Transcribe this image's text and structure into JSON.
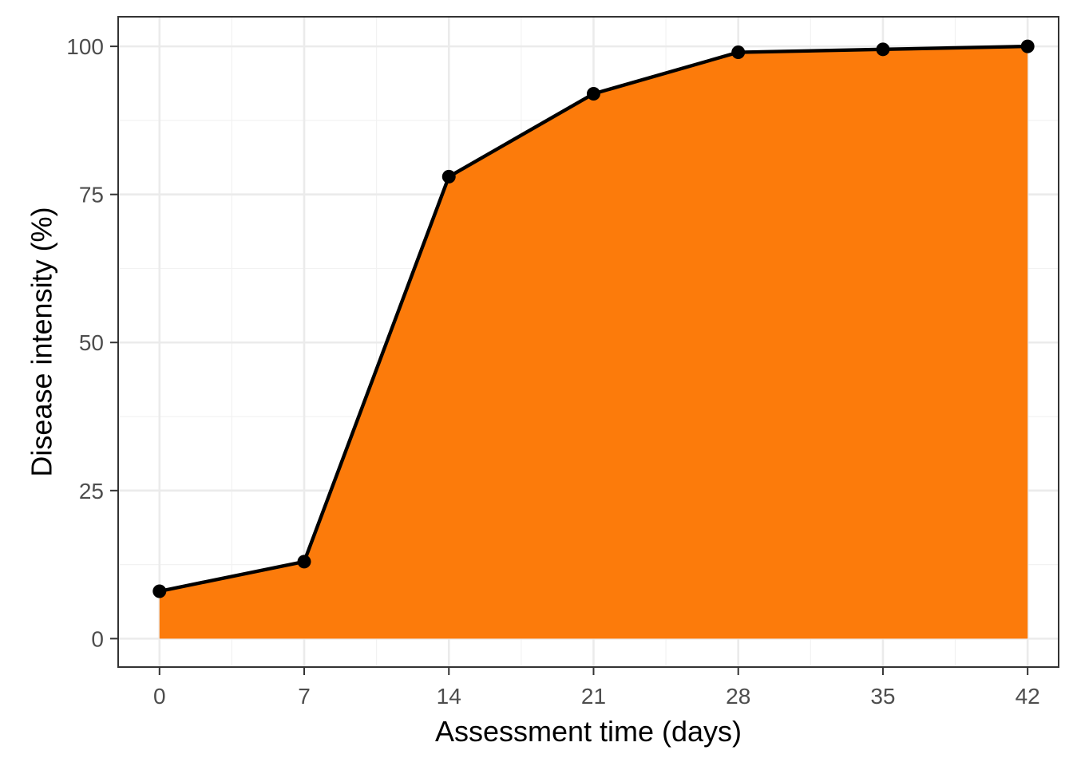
{
  "chart_data": {
    "type": "area",
    "title": "",
    "xlabel": "Assessment time (days)",
    "ylabel": "Disease intensity (%)",
    "x": [
      0,
      7,
      14,
      21,
      28,
      35,
      42
    ],
    "series": [
      {
        "values": [
          8,
          13,
          78,
          92,
          99,
          99.5,
          100
        ]
      }
    ],
    "xlim": [
      -2,
      43.5
    ],
    "ylim": [
      -4.8,
      105
    ],
    "xticks": [
      0,
      7,
      14,
      21,
      28,
      35,
      42
    ],
    "xtick_labels": [
      "0",
      "7",
      "14",
      "21",
      "28",
      "35",
      "42"
    ],
    "yticks": [
      0,
      25,
      50,
      75,
      100
    ],
    "ytick_labels": [
      "0",
      "25",
      "50",
      "75",
      "100"
    ],
    "grid": true,
    "legend": "none",
    "colors": {
      "fill": "#FC7B0B",
      "line": "#000000",
      "point": "#000000",
      "grid_major": "#EBEBEB",
      "grid_minor": "#F2F2F2",
      "panel_border": "#333333",
      "tick_text": "#4D4D4D"
    }
  }
}
